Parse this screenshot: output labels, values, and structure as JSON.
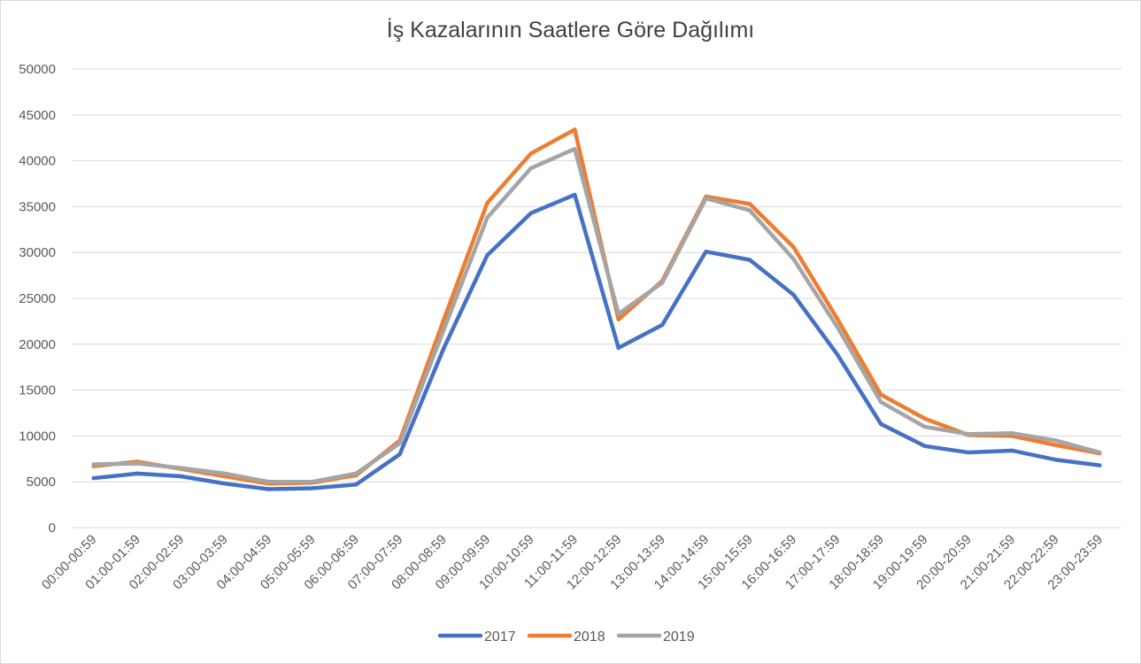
{
  "chart_data": {
    "type": "line",
    "title": "İş Kazalarının Saatlere Göre Dağılımı",
    "xlabel": "",
    "ylabel": "",
    "ylim": [
      0,
      50000
    ],
    "yticks": [
      0,
      5000,
      10000,
      15000,
      20000,
      25000,
      30000,
      35000,
      40000,
      45000,
      50000
    ],
    "grid": true,
    "legend_position": "bottom",
    "categories": [
      "00:00-00:59",
      "01:00-01:59",
      "02:00-02:59",
      "03:00-03:59",
      "04:00-04:59",
      "05:00-05:59",
      "06:00-06:59",
      "07:00-07:59",
      "08:00-08:59",
      "09:00-09:59",
      "10:00-10:59",
      "11:00-11:59",
      "12:00-12:59",
      "13:00-13:59",
      "14:00-14:59",
      "15:00-15:59",
      "16:00-16:59",
      "17:00-17:59",
      "18:00-18:59",
      "19:00-19:59",
      "20:00-20:59",
      "21:00-21:59",
      "22:00-22:59",
      "23:00-23:59"
    ],
    "series": [
      {
        "name": "2017",
        "color": "#4472c4",
        "values": [
          5400,
          5900,
          5600,
          4800,
          4200,
          4300,
          4700,
          8000,
          19500,
          29700,
          34300,
          36300,
          19600,
          22100,
          30100,
          29200,
          25400,
          18900,
          11300,
          8900,
          8200,
          8400,
          7400,
          6800
        ]
      },
      {
        "name": "2018",
        "color": "#ed7d31",
        "values": [
          6700,
          7200,
          6400,
          5600,
          4800,
          4900,
          5700,
          9500,
          22600,
          35400,
          40800,
          43400,
          22700,
          26900,
          36100,
          35300,
          30600,
          22800,
          14500,
          11900,
          10100,
          10000,
          9000,
          8100
        ]
      },
      {
        "name": "2019",
        "color": "#a5a5a5",
        "values": [
          6900,
          7000,
          6500,
          5900,
          5000,
          5000,
          5900,
          9200,
          21500,
          33800,
          39200,
          41300,
          23300,
          26700,
          35900,
          34600,
          29300,
          21900,
          13700,
          11000,
          10200,
          10300,
          9500,
          8200
        ]
      }
    ]
  }
}
